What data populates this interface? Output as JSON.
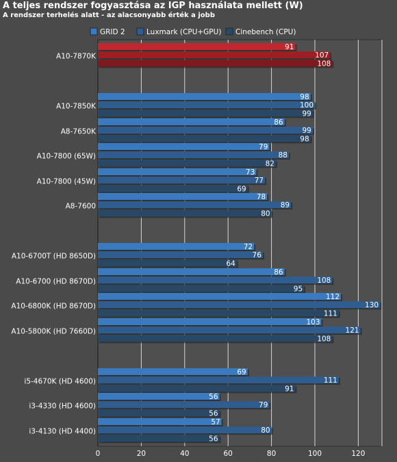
{
  "chart_data": {
    "type": "bar",
    "orientation": "horizontal",
    "title": "A teljes rendszer fogyasztása az IGP használata mellett (W)",
    "subtitle": "A rendszer terhelés alatt - az alacsonyabb érték a jobb",
    "xlim": [
      0,
      130
    ],
    "xticks": [
      0,
      20,
      40,
      60,
      80,
      100,
      120
    ],
    "grid": true,
    "legend_position": "top",
    "series": [
      {
        "name": "GRID 2",
        "color": "#3a7ac0"
      },
      {
        "name": "Luxmark (CPU+GPU)",
        "color": "#2f5d8f"
      },
      {
        "name": "Cinebench (CPU)",
        "color": "#294866"
      }
    ],
    "groups": [
      {
        "label": "A10-7870K",
        "values": [
          91,
          107,
          108
        ],
        "highlight": true
      },
      {
        "label": "A10-7850K",
        "values": [
          98,
          100,
          99
        ]
      },
      {
        "label": "A8-7650K",
        "values": [
          86,
          99,
          98
        ]
      },
      {
        "label": "A10-7800 (65W)",
        "values": [
          79,
          88,
          82
        ]
      },
      {
        "label": "A10-7800 (45W)",
        "values": [
          73,
          77,
          69
        ]
      },
      {
        "label": "A8-7600",
        "values": [
          78,
          89,
          80
        ]
      },
      {
        "label": "A10-6700T (HD 8650D)",
        "values": [
          72,
          76,
          64
        ]
      },
      {
        "label": "A10-6700 (HD 8670D)",
        "values": [
          86,
          108,
          95
        ]
      },
      {
        "label": "A10-6800K (HD 8670D)",
        "values": [
          112,
          130,
          111
        ]
      },
      {
        "label": "A10-5800K (HD 7660D)",
        "values": [
          103,
          121,
          108
        ]
      },
      {
        "label": "i5-4670K (HD 4600)",
        "values": [
          69,
          111,
          91
        ]
      },
      {
        "label": "i3-4330 (HD 4600)",
        "values": [
          56,
          79,
          56
        ]
      },
      {
        "label": "i3-4130 (HD 4400)",
        "values": [
          57,
          80,
          56
        ]
      }
    ],
    "highlight_colors": [
      "#c0282d",
      "#9e1f23",
      "#7d1a1d"
    ]
  }
}
